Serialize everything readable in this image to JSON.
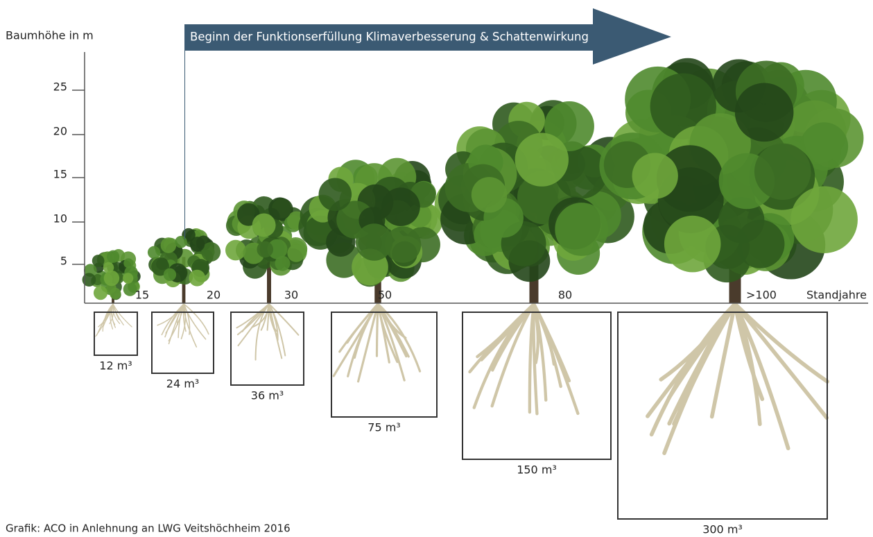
{
  "axis": {
    "label": "Baumhöhe in m",
    "ticks": [
      "25",
      "20",
      "15",
      "10",
      "5"
    ]
  },
  "banner": {
    "text": "Beginn der Funktionserfüllung Klimaverbesserung & Schattenwirkung"
  },
  "years": {
    "labels": [
      "15",
      "20",
      "30",
      "50",
      "80",
      ">100"
    ],
    "title": "Standjahre"
  },
  "volumes": [
    "12 m³",
    "24 m³",
    "36 m³",
    "75 m³",
    "150 m³",
    "300 m³"
  ],
  "footer": {
    "credit": "Grafik: ACO in Anlehnung an LWG Veitshöchheim 2016"
  }
}
